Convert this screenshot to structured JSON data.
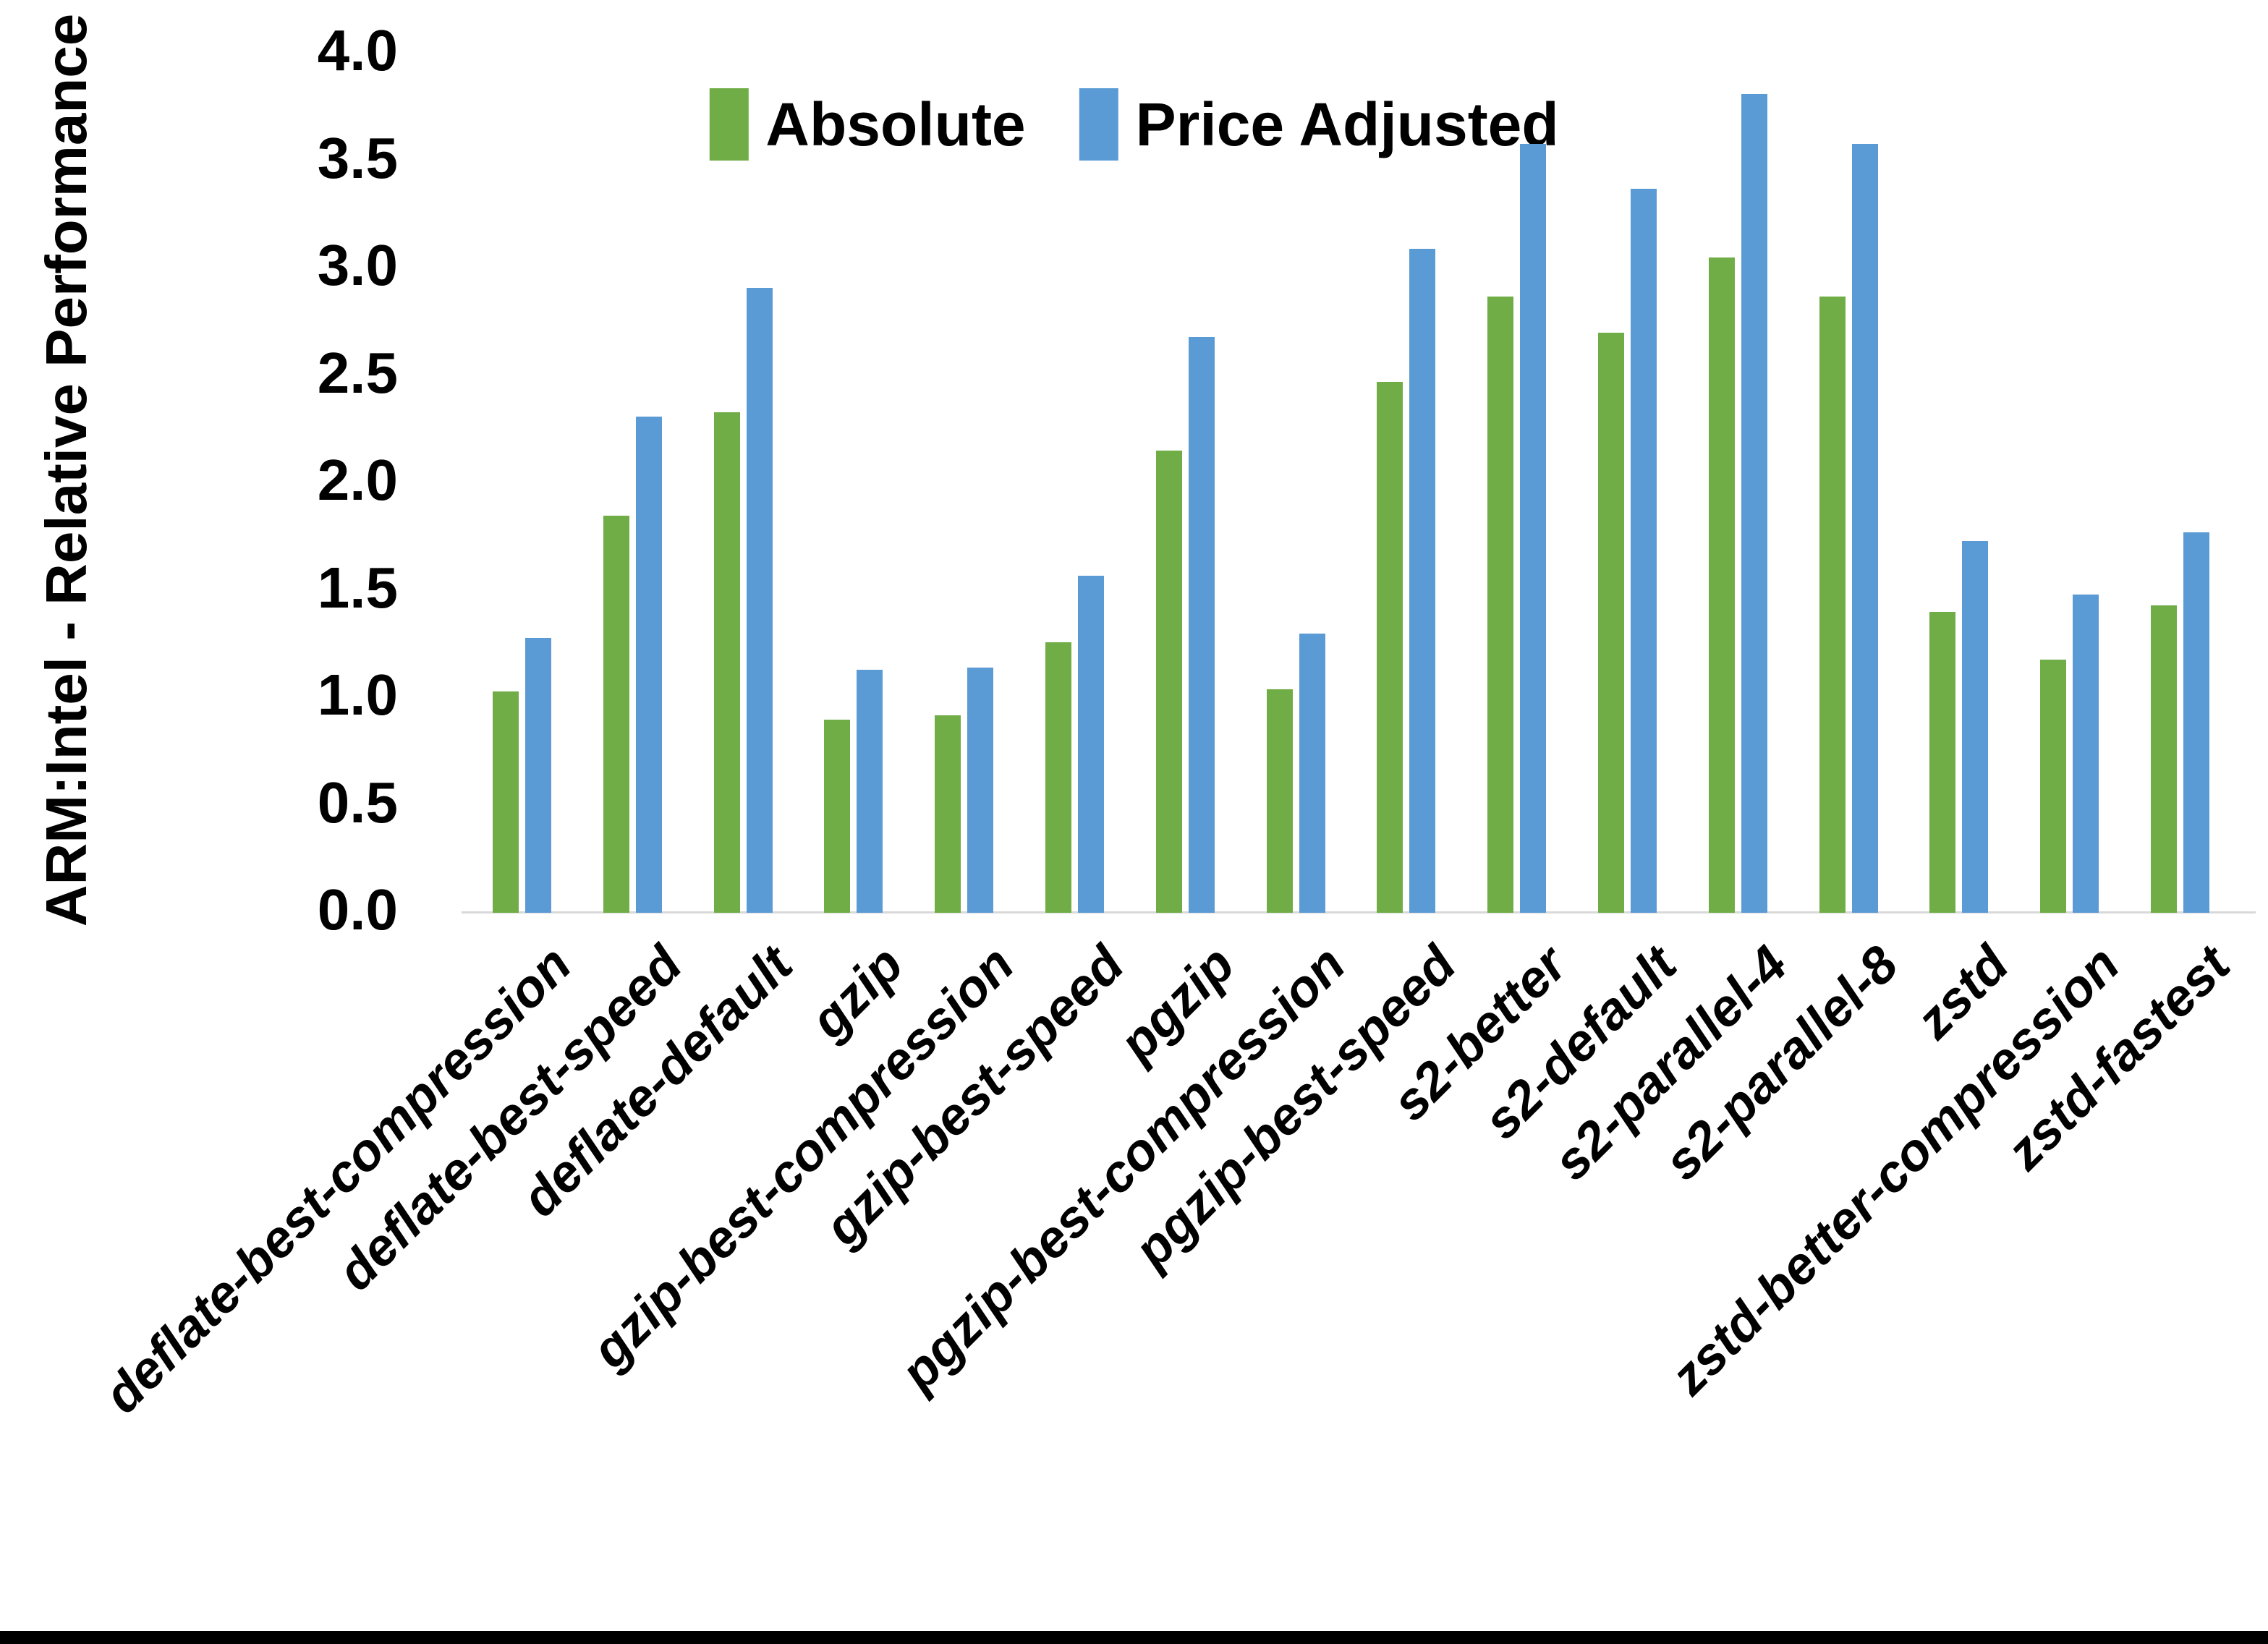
{
  "chart_data": {
    "type": "bar",
    "title": "",
    "xlabel": "",
    "ylabel": "ARM:Intel - Relative Performance",
    "ylim": [
      0.0,
      4.0
    ],
    "ytick_step": 0.5,
    "ytick_decimals": 1,
    "grid": false,
    "legend_position": "top-center",
    "categories": [
      "deflate-best-compression",
      "deflate-best-speed",
      "deflate-default",
      "gzip",
      "gzip-best-compression",
      "gzip-best-speed",
      "pgzip",
      "pgzip-best-compression",
      "pgzip-best-speed",
      "s2-better",
      "s2-default",
      "s2-parallel-4",
      "s2-parallel-8",
      "zstd",
      "zstd-better-compression",
      "zstd-fastest"
    ],
    "series": [
      {
        "name": "Absolute",
        "color": "#70AD47",
        "values": [
          1.03,
          1.85,
          2.33,
          0.9,
          0.92,
          1.26,
          2.15,
          1.04,
          2.47,
          2.87,
          2.7,
          3.05,
          2.87,
          1.4,
          1.18,
          1.43
        ]
      },
      {
        "name": "Price Adjusted",
        "color": "#5B9BD5",
        "values": [
          1.28,
          2.31,
          2.91,
          1.13,
          1.14,
          1.57,
          2.68,
          1.3,
          3.09,
          3.58,
          3.37,
          3.81,
          3.58,
          1.73,
          1.48,
          1.77
        ]
      }
    ]
  },
  "colors": {
    "background": "#FFFFFF",
    "axis_line": "#D9D9D9",
    "text": "#000000",
    "bottom_border": "#000000",
    "absolute_series": "#70AD47",
    "price_adjusted_series": "#5B9BD5"
  }
}
